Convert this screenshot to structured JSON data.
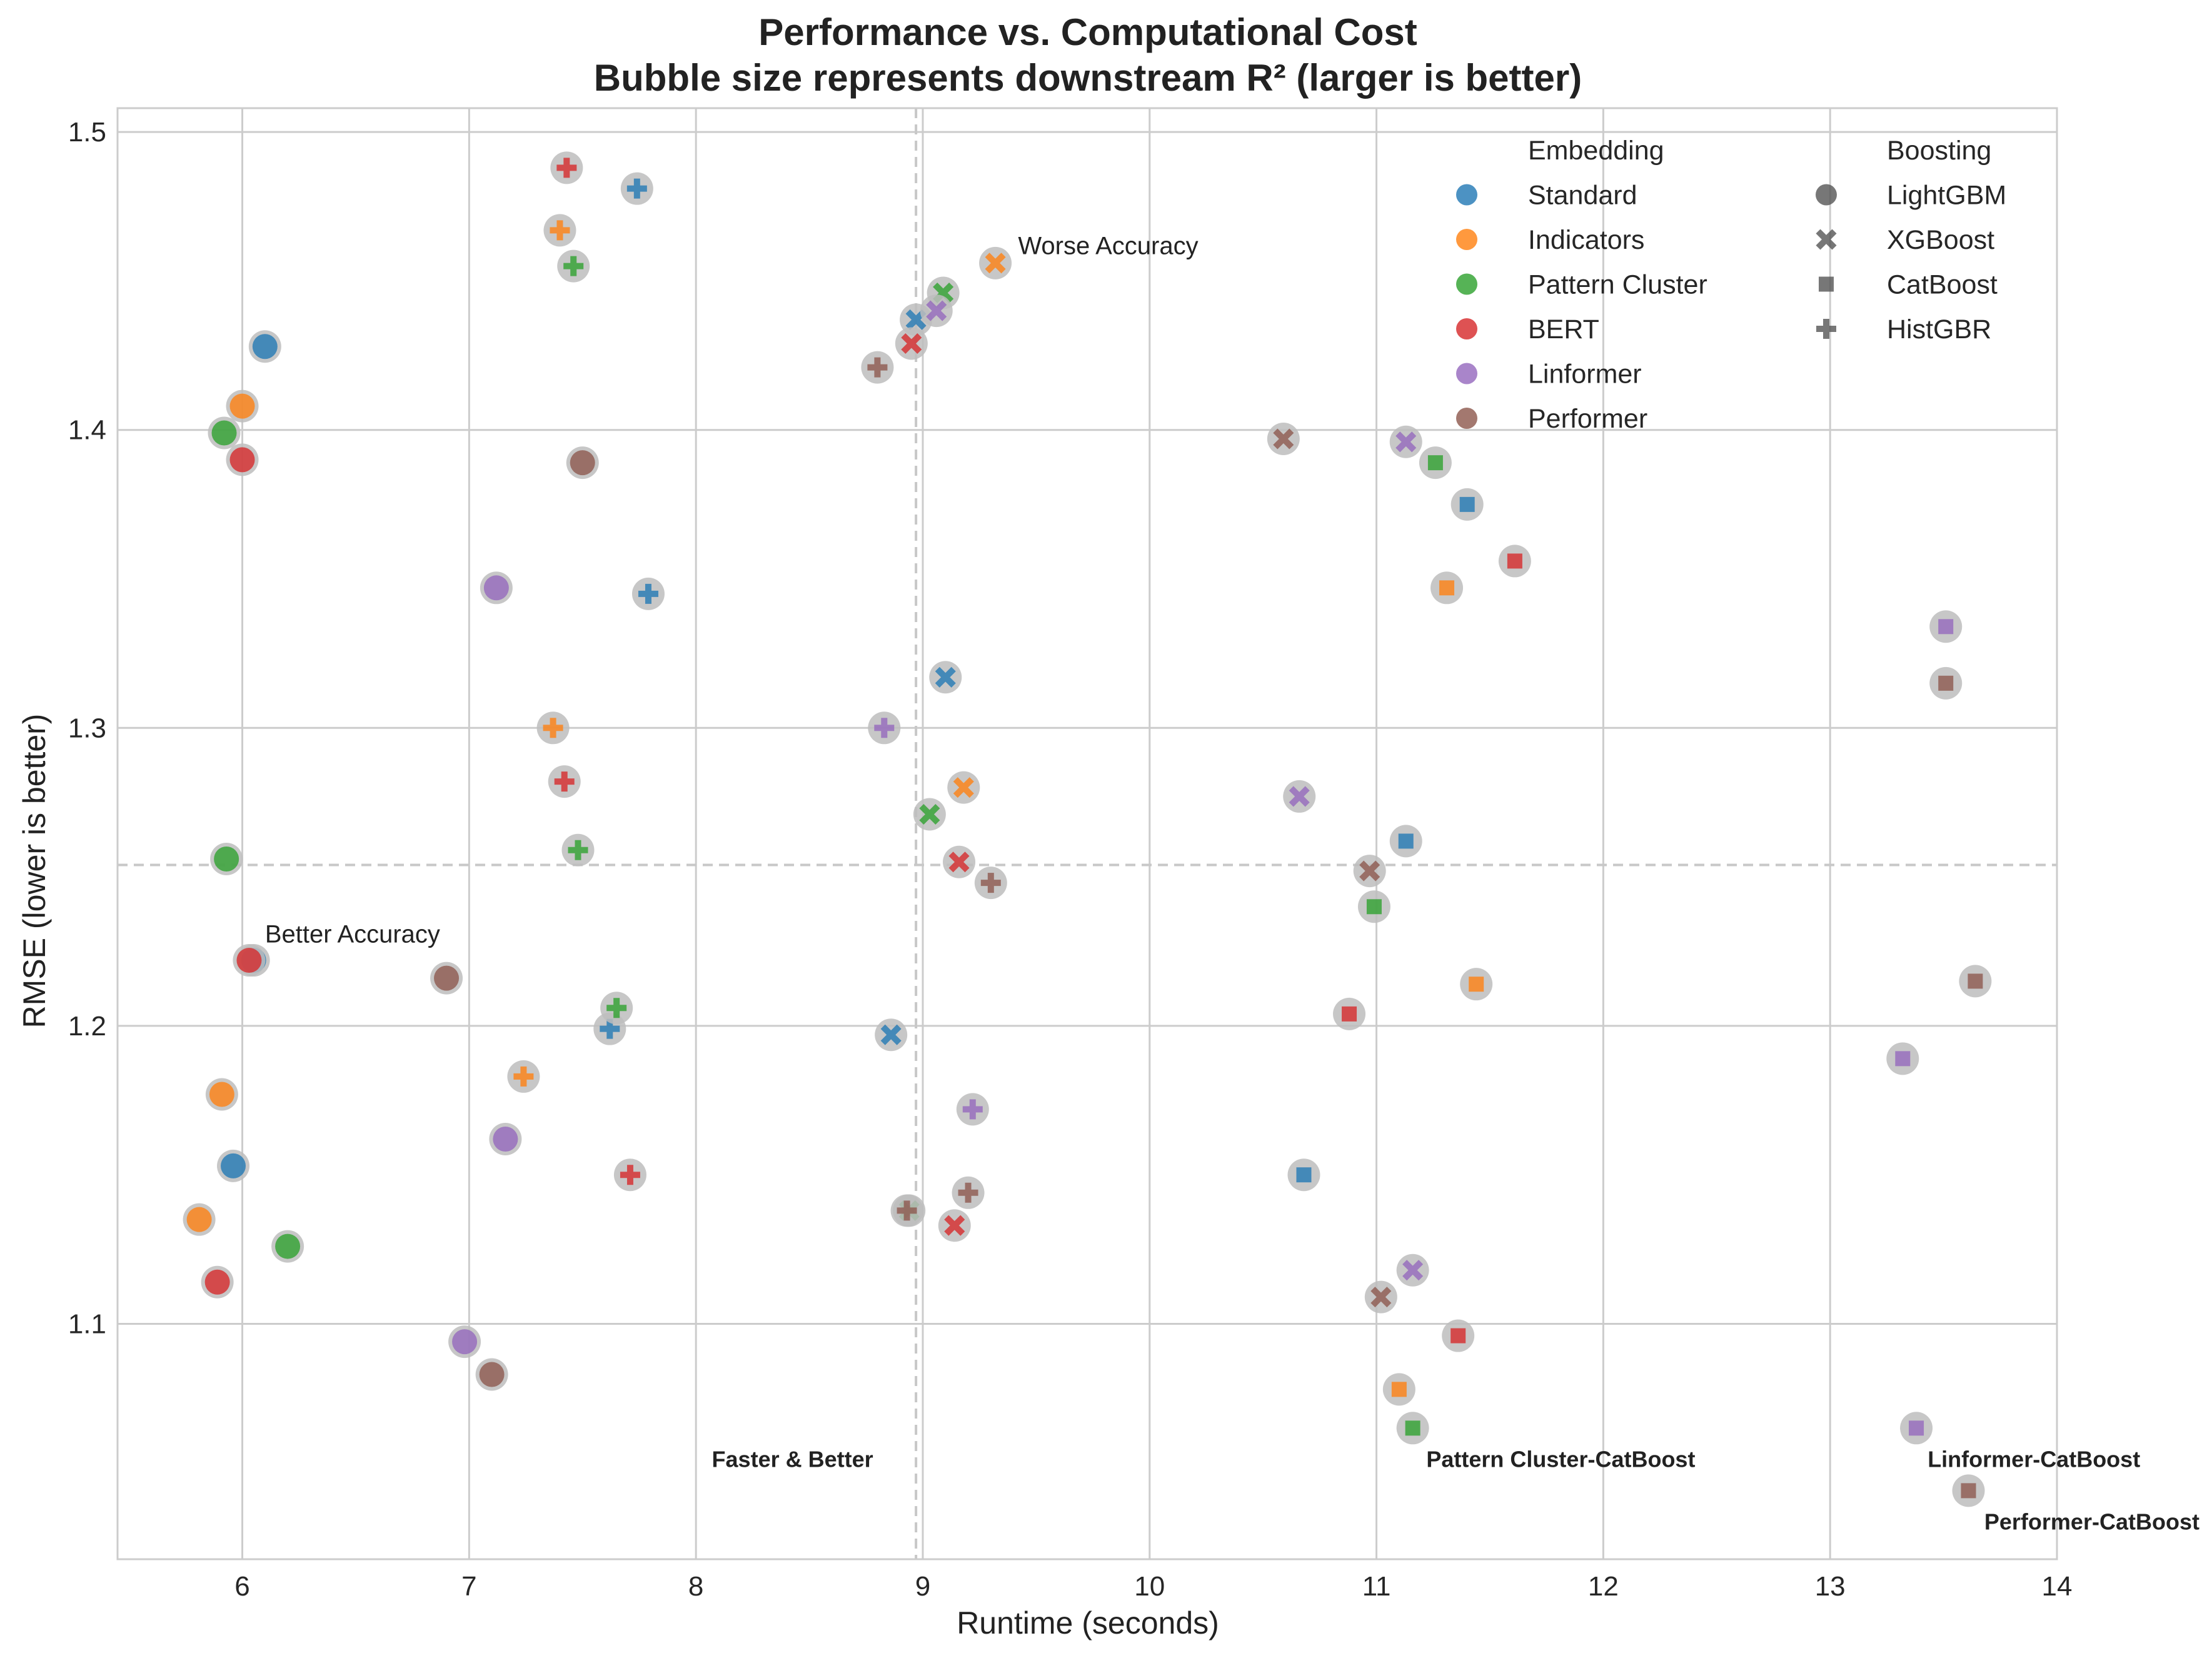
{
  "chart_data": {
    "type": "scatter",
    "title": "Performance vs. Computational Cost",
    "subtitle": "Bubble size represents downstream R² (larger is better)",
    "xlabel": "Runtime (seconds)",
    "ylabel": "RMSE (lower is better)",
    "xlim": [
      5.45,
      14.0
    ],
    "ylim": [
      1.021,
      1.508
    ],
    "xticks": [
      "6",
      "7",
      "8",
      "9",
      "10",
      "11",
      "12",
      "13",
      "14"
    ],
    "yticks": [
      "1.1",
      "1.2",
      "1.3",
      "1.4",
      "1.5"
    ],
    "grid": true,
    "reference_lines": {
      "x": 8.97,
      "y": 1.254
    },
    "legend": {
      "placement": "top-right",
      "embedding_title": "Embedding",
      "boosting_title": "Boosting",
      "embeddings": [
        {
          "name": "Standard",
          "color": "#1f77b4"
        },
        {
          "name": "Indicators",
          "color": "#ff7f0e"
        },
        {
          "name": "Pattern Cluster",
          "color": "#2ca02c"
        },
        {
          "name": "BERT",
          "color": "#d62728"
        },
        {
          "name": "Linformer",
          "color": "#9467bd"
        },
        {
          "name": "Performer",
          "color": "#8c564b"
        }
      ],
      "boostings": [
        {
          "name": "LightGBM",
          "marker": "circle"
        },
        {
          "name": "XGBoost",
          "marker": "x"
        },
        {
          "name": "CatBoost",
          "marker": "square"
        },
        {
          "name": "HistGBR",
          "marker": "plus"
        }
      ]
    },
    "annotations": [
      {
        "text": "Worse Accuracy",
        "x": 9.42,
        "y": 1.459,
        "bold": false
      },
      {
        "text": "Better Accuracy",
        "x": 6.1,
        "y": 1.228,
        "bold": false
      },
      {
        "text": "Faster & Better",
        "x": 8.07,
        "y": 1.052,
        "bold": true
      },
      {
        "text": "Pattern Cluster-CatBoost",
        "x": 11.22,
        "y": 1.052,
        "bold": true
      },
      {
        "text": "Linformer-CatBoost",
        "x": 13.43,
        "y": 1.052,
        "bold": true
      },
      {
        "text": "Performer-CatBoost",
        "x": 13.68,
        "y": 1.031,
        "bold": true
      }
    ],
    "series": [
      {
        "name": "Standard",
        "color": "#1f77b4",
        "points": [
          {
            "boosting": "LightGBM",
            "x": 6.1,
            "y": 1.428
          },
          {
            "boosting": "LightGBM",
            "x": 5.96,
            "y": 1.153
          },
          {
            "boosting": "LightGBM",
            "x": 6.05,
            "y": 1.222
          },
          {
            "boosting": "XGBoost",
            "x": 8.97,
            "y": 1.437
          },
          {
            "boosting": "XGBoost",
            "x": 9.1,
            "y": 1.317
          },
          {
            "boosting": "XGBoost",
            "x": 8.86,
            "y": 1.197
          },
          {
            "boosting": "CatBoost",
            "x": 11.4,
            "y": 1.375
          },
          {
            "boosting": "CatBoost",
            "x": 11.13,
            "y": 1.262
          },
          {
            "boosting": "CatBoost",
            "x": 10.68,
            "y": 1.15
          },
          {
            "boosting": "HistGBR",
            "x": 7.74,
            "y": 1.481
          },
          {
            "boosting": "HistGBR",
            "x": 7.79,
            "y": 1.345
          },
          {
            "boosting": "HistGBR",
            "x": 7.62,
            "y": 1.199
          }
        ]
      },
      {
        "name": "Indicators",
        "color": "#ff7f0e",
        "points": [
          {
            "boosting": "LightGBM",
            "x": 6.0,
            "y": 1.408
          },
          {
            "boosting": "LightGBM",
            "x": 5.91,
            "y": 1.177
          },
          {
            "boosting": "LightGBM",
            "x": 5.81,
            "y": 1.135
          },
          {
            "boosting": "XGBoost",
            "x": 9.32,
            "y": 1.456
          },
          {
            "boosting": "XGBoost",
            "x": 9.18,
            "y": 1.28
          },
          {
            "boosting": "CatBoost",
            "x": 11.31,
            "y": 1.347
          },
          {
            "boosting": "CatBoost",
            "x": 11.44,
            "y": 1.214
          },
          {
            "boosting": "CatBoost",
            "x": 11.1,
            "y": 1.078
          },
          {
            "boosting": "HistGBR",
            "x": 7.4,
            "y": 1.467
          },
          {
            "boosting": "HistGBR",
            "x": 7.37,
            "y": 1.3
          },
          {
            "boosting": "HistGBR",
            "x": 7.24,
            "y": 1.183
          }
        ]
      },
      {
        "name": "Pattern Cluster",
        "color": "#2ca02c",
        "points": [
          {
            "boosting": "LightGBM",
            "x": 5.92,
            "y": 1.399
          },
          {
            "boosting": "LightGBM",
            "x": 5.93,
            "y": 1.256
          },
          {
            "boosting": "LightGBM",
            "x": 6.2,
            "y": 1.126
          },
          {
            "boosting": "XGBoost",
            "x": 9.09,
            "y": 1.446
          },
          {
            "boosting": "XGBoost",
            "x": 9.03,
            "y": 1.271
          },
          {
            "boosting": "XGBoost",
            "x": 8.94,
            "y": 1.138
          },
          {
            "boosting": "CatBoost",
            "x": 11.26,
            "y": 1.389
          },
          {
            "boosting": "CatBoost",
            "x": 10.99,
            "y": 1.24
          },
          {
            "boosting": "CatBoost",
            "x": 11.16,
            "y": 1.065
          },
          {
            "boosting": "HistGBR",
            "x": 7.46,
            "y": 1.455
          },
          {
            "boosting": "HistGBR",
            "x": 7.48,
            "y": 1.259
          },
          {
            "boosting": "HistGBR",
            "x": 7.65,
            "y": 1.206
          }
        ]
      },
      {
        "name": "BERT",
        "color": "#d62728",
        "points": [
          {
            "boosting": "LightGBM",
            "x": 6.0,
            "y": 1.39
          },
          {
            "boosting": "LightGBM",
            "x": 6.03,
            "y": 1.222
          },
          {
            "boosting": "LightGBM",
            "x": 5.89,
            "y": 1.114
          },
          {
            "boosting": "XGBoost",
            "x": 8.95,
            "y": 1.429
          },
          {
            "boosting": "XGBoost",
            "x": 9.16,
            "y": 1.255
          },
          {
            "boosting": "XGBoost",
            "x": 9.14,
            "y": 1.133
          },
          {
            "boosting": "CatBoost",
            "x": 11.61,
            "y": 1.356
          },
          {
            "boosting": "CatBoost",
            "x": 10.88,
            "y": 1.204
          },
          {
            "boosting": "CatBoost",
            "x": 11.36,
            "y": 1.096
          },
          {
            "boosting": "HistGBR",
            "x": 7.43,
            "y": 1.488
          },
          {
            "boosting": "HistGBR",
            "x": 7.42,
            "y": 1.282
          },
          {
            "boosting": "HistGBR",
            "x": 7.71,
            "y": 1.15
          }
        ]
      },
      {
        "name": "Linformer",
        "color": "#9467bd",
        "points": [
          {
            "boosting": "LightGBM",
            "x": 7.12,
            "y": 1.347
          },
          {
            "boosting": "LightGBM",
            "x": 7.16,
            "y": 1.162
          },
          {
            "boosting": "LightGBM",
            "x": 6.98,
            "y": 1.094
          },
          {
            "boosting": "XGBoost",
            "x": 9.06,
            "y": 1.44
          },
          {
            "boosting": "XGBoost",
            "x": 11.13,
            "y": 1.396
          },
          {
            "boosting": "XGBoost",
            "x": 10.66,
            "y": 1.277
          },
          {
            "boosting": "XGBoost",
            "x": 11.16,
            "y": 1.118
          },
          {
            "boosting": "CatBoost",
            "x": 13.51,
            "y": 1.334
          },
          {
            "boosting": "CatBoost",
            "x": 13.32,
            "y": 1.189
          },
          {
            "boosting": "CatBoost",
            "x": 13.38,
            "y": 1.065
          },
          {
            "boosting": "HistGBR",
            "x": 8.83,
            "y": 1.3
          },
          {
            "boosting": "HistGBR",
            "x": 9.22,
            "y": 1.172
          }
        ]
      },
      {
        "name": "Performer",
        "color": "#8c564b",
        "points": [
          {
            "boosting": "LightGBM",
            "x": 7.5,
            "y": 1.389
          },
          {
            "boosting": "LightGBM",
            "x": 6.9,
            "y": 1.216
          },
          {
            "boosting": "LightGBM",
            "x": 7.1,
            "y": 1.083
          },
          {
            "boosting": "XGBoost",
            "x": 10.59,
            "y": 1.397
          },
          {
            "boosting": "XGBoost",
            "x": 10.97,
            "y": 1.252
          },
          {
            "boosting": "XGBoost",
            "x": 11.02,
            "y": 1.109
          },
          {
            "boosting": "CatBoost",
            "x": 13.51,
            "y": 1.315
          },
          {
            "boosting": "CatBoost",
            "x": 13.64,
            "y": 1.215
          },
          {
            "boosting": "CatBoost",
            "x": 13.61,
            "y": 1.044
          },
          {
            "boosting": "HistGBR",
            "x": 8.8,
            "y": 1.421
          },
          {
            "boosting": "HistGBR",
            "x": 9.3,
            "y": 1.248
          },
          {
            "boosting": "HistGBR",
            "x": 9.2,
            "y": 1.144
          },
          {
            "boosting": "HistGBR",
            "x": 8.93,
            "y": 1.138
          }
        ]
      }
    ]
  }
}
